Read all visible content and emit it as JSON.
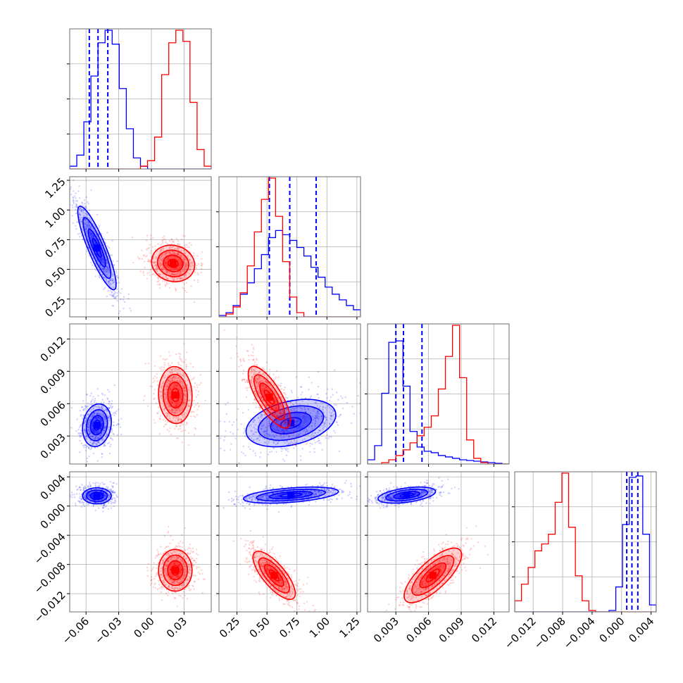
{
  "chart_data": {
    "type": "corner",
    "colors": {
      "blue_series": "#0000ff",
      "red_series": "#ff0000",
      "grid": "#b0b0b0"
    },
    "params": [
      {
        "id": "p1",
        "ticks": [
          -0.06,
          -0.03,
          0.0,
          0.03
        ],
        "tick_labels": [
          "−0.06",
          "−0.03",
          "0.00",
          "0.03"
        ],
        "range": [
          -0.075,
          0.055
        ]
      },
      {
        "id": "p2",
        "ticks": [
          0.25,
          0.5,
          0.75,
          1.0,
          1.25
        ],
        "tick_labels": [
          "0.25",
          "0.50",
          "0.75",
          "1.00",
          "1.25"
        ],
        "range": [
          0.1,
          1.28
        ]
      },
      {
        "id": "p3",
        "ticks": [
          0.003,
          0.006,
          0.009,
          0.012
        ],
        "tick_labels": [
          "0.003",
          "0.006",
          "0.009",
          "0.012"
        ],
        "range": [
          0.0004,
          0.0134
        ]
      },
      {
        "id": "p4",
        "ticks": [
          -0.012,
          -0.008,
          -0.004,
          0.0,
          0.004
        ],
        "tick_labels": [
          "−0.012",
          "−0.008",
          "−0.004",
          "0.000",
          "0.004"
        ],
        "range": [
          -0.0145,
          0.0047
        ]
      }
    ],
    "series": [
      {
        "color": "#0000ff",
        "quantiles": [
          [
            -0.057,
            -0.049,
            -0.04
          ],
          [
            0.52,
            0.69,
            0.91
          ],
          [
            0.003,
            0.0037,
            0.0054
          ],
          [
            0.0007,
            0.0014,
            0.0022
          ]
        ],
        "histograms": [
          [
            0.2,
            1.0,
            3.4,
            6.7,
            9.1,
            10.0,
            9.0,
            5.8,
            2.9,
            0.8,
            0.2,
            0,
            0,
            0,
            0,
            0,
            0,
            0,
            0,
            0
          ],
          [
            0.1,
            0.3,
            0.8,
            1.6,
            2.4,
            3.4,
            4.4,
            5.6,
            6.1,
            5.8,
            5.4,
            4.9,
            4.3,
            3.5,
            2.8,
            2.1,
            1.6,
            1.2,
            0.8,
            0.5
          ],
          [
            0.3,
            1.3,
            5.0,
            8.6,
            8.7,
            5.5,
            2.3,
            1.2,
            0.9,
            0.8,
            0.6,
            0.5,
            0.4,
            0.3,
            0.25,
            0.2,
            0.15,
            0.1,
            0.05,
            0
          ],
          [
            0,
            0,
            0,
            0,
            0,
            0,
            0,
            0,
            0,
            0,
            0,
            0,
            0,
            0,
            0.1,
            1.8,
            6.3,
            9.7,
            9.8,
            5.6,
            0.5
          ]
        ],
        "pairs": [
          {
            "x": 0,
            "y": 1,
            "center": [
              -0.05,
              0.68
            ],
            "sd": [
              0.008,
              0.16
            ],
            "rho": -0.87
          },
          {
            "x": 0,
            "y": 2,
            "center": [
              -0.05,
              0.004
            ],
            "sd": [
              0.006,
              0.0009
            ],
            "rho": 0.15
          },
          {
            "x": 0,
            "y": 3,
            "center": [
              -0.05,
              0.0014
            ],
            "sd": [
              0.006,
              0.0005
            ],
            "rho": 0.0
          },
          {
            "x": 1,
            "y": 2,
            "center": [
              0.7,
              0.0042
            ],
            "sd": [
              0.17,
              0.001
            ],
            "rho": 0.35
          },
          {
            "x": 1,
            "y": 3,
            "center": [
              0.7,
              0.0015
            ],
            "sd": [
              0.18,
              0.0005
            ],
            "rho": 0.45
          },
          {
            "x": 2,
            "y": 3,
            "center": [
              0.004,
              0.0015
            ],
            "sd": [
              0.0012,
              0.0005
            ],
            "rho": 0.45
          }
        ]
      },
      {
        "color": "#ff0000",
        "quantiles": [],
        "histograms": [
          [
            0,
            0,
            0,
            0,
            0,
            0,
            0,
            0,
            0,
            0,
            0.2,
            0.6,
            2.3,
            6.8,
            9.1,
            10.0,
            9.2,
            4.8,
            1.4,
            0.2
          ],
          [
            0,
            0.2,
            0.7,
            1.7,
            3.6,
            6.0,
            8.3,
            9.8,
            7.1,
            3.9,
            1.4,
            0.3,
            0,
            0,
            0,
            0,
            0,
            0,
            0,
            0
          ],
          [
            0,
            0,
            0.1,
            0.3,
            0.6,
            1.0,
            1.5,
            2.0,
            2.6,
            3.4,
            5.3,
            7.6,
            9.8,
            6.1,
            1.7,
            0.4,
            0.1,
            0,
            0,
            0
          ],
          [
            0.8,
            2.0,
            3.2,
            4.4,
            4.9,
            5.6,
            7.9,
            10.0,
            6.1,
            2.6,
            0.8,
            0.1,
            0,
            0,
            0,
            0,
            0,
            0,
            0,
            0,
            0
          ]
        ],
        "pairs": [
          {
            "x": 0,
            "y": 1,
            "center": [
              0.02,
              0.55
            ],
            "sd": [
              0.009,
              0.07
            ],
            "rho": -0.1
          },
          {
            "x": 0,
            "y": 2,
            "center": [
              0.022,
              0.0068
            ],
            "sd": [
              0.007,
              0.0012
            ],
            "rho": -0.05
          },
          {
            "x": 0,
            "y": 3,
            "center": [
              0.022,
              -0.0088
            ],
            "sd": [
              0.007,
              0.0013
            ],
            "rho": 0.0
          },
          {
            "x": 1,
            "y": 2,
            "center": [
              0.52,
              0.0066
            ],
            "sd": [
              0.08,
              0.0013
            ],
            "rho": -0.75
          },
          {
            "x": 1,
            "y": 3,
            "center": [
              0.56,
              -0.0095
            ],
            "sd": [
              0.08,
              0.0015
            ],
            "rho": -0.75
          },
          {
            "x": 2,
            "y": 3,
            "center": [
              0.0064,
              -0.0095
            ],
            "sd": [
              0.0012,
              0.0017
            ],
            "rho": 0.75
          }
        ]
      }
    ],
    "diag_y_tick_count": 3,
    "grid": true
  }
}
